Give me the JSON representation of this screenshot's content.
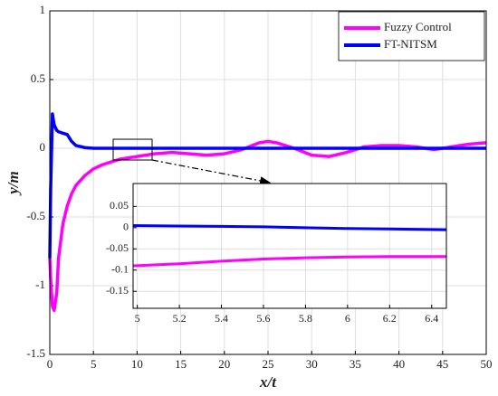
{
  "chart_data": [
    {
      "type": "line",
      "xlabel": "x/t",
      "ylabel": "y/m",
      "x": [
        0,
        0.1,
        0.3,
        0.5,
        0.8,
        1,
        1.5,
        2,
        2.5,
        3,
        4,
        5,
        6,
        8,
        10,
        12,
        14,
        16,
        18,
        20,
        22,
        24,
        25,
        26,
        28,
        30,
        32,
        34,
        36,
        38,
        40,
        42,
        44,
        46,
        48,
        50
      ],
      "series": [
        {
          "name": "Fuzzy Control",
          "color": "#ff00ff",
          "values": [
            -0.8,
            -0.95,
            -1.15,
            -1.18,
            -1.05,
            -0.8,
            -0.55,
            -0.42,
            -0.33,
            -0.27,
            -0.2,
            -0.15,
            -0.12,
            -0.08,
            -0.06,
            -0.04,
            -0.03,
            -0.04,
            -0.05,
            -0.04,
            -0.01,
            0.04,
            0.05,
            0.04,
            0,
            -0.05,
            -0.06,
            -0.03,
            0.01,
            0.02,
            0.02,
            0.01,
            -0.01,
            0.01,
            0.03,
            0.04
          ]
        },
        {
          "name": "FT-NITSM",
          "color": "#0000ff",
          "values": [
            -0.8,
            -0.3,
            0.25,
            0.17,
            0.13,
            0.12,
            0.11,
            0.1,
            0.05,
            0.02,
            0.005,
            0,
            0,
            0,
            0,
            0,
            0,
            0,
            0,
            0,
            0,
            0,
            0,
            0,
            0,
            0,
            0,
            0,
            0,
            0,
            0,
            0,
            0,
            0,
            0,
            0
          ]
        }
      ],
      "xlim": [
        0,
        50
      ],
      "ylim": [
        -1.5,
        1
      ],
      "xticks": [
        0,
        5,
        10,
        15,
        20,
        25,
        30,
        35,
        40,
        45,
        50
      ],
      "yticks": [
        -1.5,
        -1,
        -0.5,
        0,
        0.5,
        1
      ],
      "grid": true,
      "legend": "upper right"
    },
    {
      "type": "line",
      "x": [
        4.98,
        5.2,
        5.4,
        5.6,
        5.8,
        6,
        6.2,
        6.47
      ],
      "series": [
        {
          "color": "#ff00ff",
          "values": [
            -0.09,
            -0.085,
            -0.079,
            -0.074,
            -0.071,
            -0.069,
            -0.068,
            -0.068
          ]
        },
        {
          "color": "#0000ff",
          "values": [
            0.005,
            0.004,
            0.003,
            0.002,
            0,
            -0.002,
            -0.003,
            -0.005
          ]
        }
      ],
      "xlim": [
        4.98,
        6.47
      ],
      "ylim": [
        -0.19,
        0.104
      ],
      "xticks": [
        5,
        5.2,
        5.4,
        5.6,
        5.8,
        6,
        6.2,
        6.4
      ],
      "yticks": [
        -0.15,
        -0.1,
        -0.05,
        0,
        0.05
      ],
      "grid": true
    }
  ]
}
